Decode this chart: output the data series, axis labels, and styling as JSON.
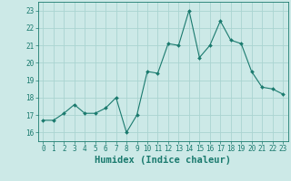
{
  "x": [
    0,
    1,
    2,
    3,
    4,
    5,
    6,
    7,
    8,
    9,
    10,
    11,
    12,
    13,
    14,
    15,
    16,
    17,
    18,
    19,
    20,
    21,
    22,
    23
  ],
  "y": [
    16.7,
    16.7,
    17.1,
    17.6,
    17.1,
    17.1,
    17.4,
    18.0,
    16.0,
    17.0,
    19.5,
    19.4,
    21.1,
    21.0,
    23.0,
    20.3,
    21.0,
    22.4,
    21.3,
    21.1,
    19.5,
    18.6,
    18.5,
    18.2
  ],
  "line_color": "#1a7a6e",
  "marker": "D",
  "marker_size": 2.0,
  "bg_color": "#cce9e7",
  "grid_color": "#aad4d1",
  "xlabel": "Humidex (Indice chaleur)",
  "xlim": [
    -0.5,
    23.5
  ],
  "ylim": [
    15.5,
    23.5
  ],
  "yticks": [
    16,
    17,
    18,
    19,
    20,
    21,
    22,
    23
  ],
  "xticks": [
    0,
    1,
    2,
    3,
    4,
    5,
    6,
    7,
    8,
    9,
    10,
    11,
    12,
    13,
    14,
    15,
    16,
    17,
    18,
    19,
    20,
    21,
    22,
    23
  ],
  "tick_color": "#1a7a6e",
  "xlabel_fontsize": 7.5,
  "tick_fontsize": 5.5
}
